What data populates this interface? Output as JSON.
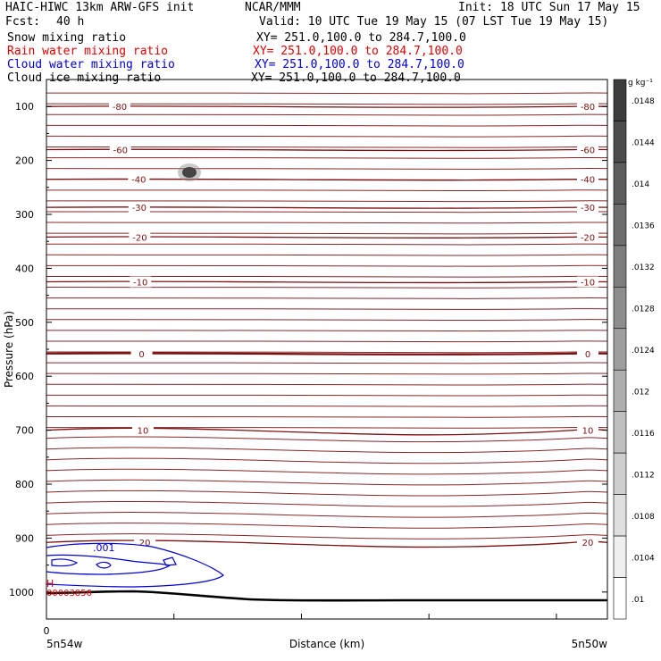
{
  "header": {
    "model": "HAIC-HIWC 13km ARW-GFS init",
    "org": "NCAR/MMM",
    "init": "Init: 18 UTC Sun 17 May 15",
    "fcst_label": "Fcst:",
    "fcst_value": "40 h",
    "valid": "Valid: 10 UTC Tue 19 May 15 (07 LST Tue 19 May 15)"
  },
  "fields": [
    {
      "name": "Snow mixing ratio",
      "xy": "XY= 251.0,100.0 to 284.7,100.0",
      "color": "#000000"
    },
    {
      "name": "Rain water mixing ratio",
      "xy": "XY= 251.0,100.0 to 284.7,100.0",
      "color": "#e00000"
    },
    {
      "name": "Cloud water mixing ratio",
      "xy": "XY= 251.0,100.0 to 284.7,100.0",
      "color": "#0000d0"
    },
    {
      "name": "Cloud ice mixing ratio",
      "xy": "XY= 251.0,100.0 to 284.7,100.0",
      "color": "#000000"
    }
  ],
  "colorbar": {
    "unit": "g kg⁻¹",
    "labels": [
      ".0148",
      ".0144",
      ".014",
      ".0136",
      ".0132",
      ".0128",
      ".0124",
      ".012",
      ".0116",
      ".0112",
      ".0108",
      ".0104",
      ".01"
    ]
  },
  "chart_data": {
    "type": "contour",
    "xlabel": "Distance (km)",
    "ylabel": "Pressure (hPa)",
    "ylim": [
      1050,
      50
    ],
    "y_ticks": [
      100,
      200,
      300,
      400,
      500,
      600,
      700,
      800,
      900,
      1000
    ],
    "x_start_tick": "0",
    "x_left_label": "5n54w",
    "x_right_label": "5n50w",
    "temperature_contours": [
      {
        "label": "-80",
        "p": 100
      },
      {
        "label": "-60",
        "p": 180
      },
      {
        "label": "-40",
        "p": 235
      },
      {
        "label": "-30",
        "p": 287
      },
      {
        "label": "-20",
        "p": 342
      },
      {
        "label": "-10",
        "p": 425
      },
      {
        "label": "0",
        "p": 558
      },
      {
        "label": "10",
        "p": 700
      },
      {
        "label": "20",
        "p": 908
      }
    ],
    "cloud_water_label": ".001",
    "rain_label": "H",
    "rain_value": "00003856"
  }
}
